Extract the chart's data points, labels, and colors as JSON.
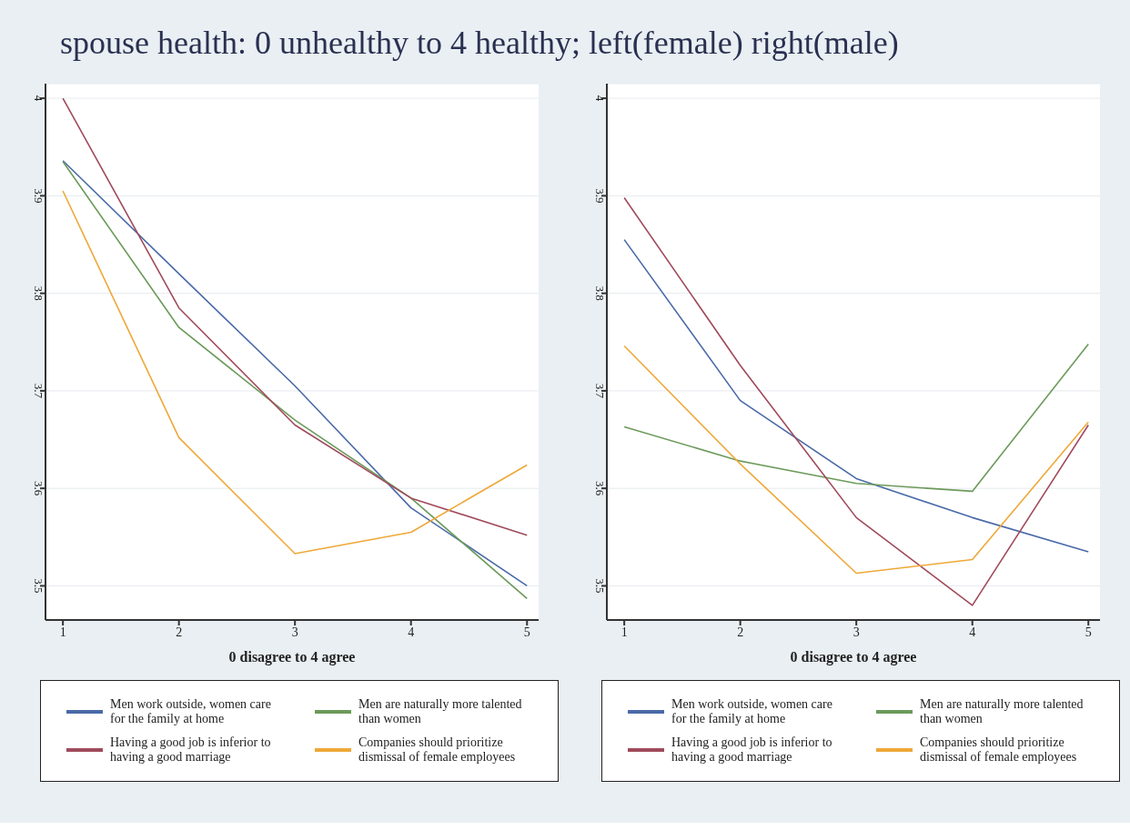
{
  "chart_data": [
    {
      "type": "line",
      "title": "spouse health: 0 unhealthy to 4 healthy; left(female) right(male)",
      "xlabel": "0 disagree to 4 agree",
      "x": [
        1,
        2,
        3,
        4,
        5
      ],
      "xlim": [
        0.85,
        5.1
      ],
      "xticks": [
        1,
        2,
        3,
        4,
        5
      ],
      "ylim": [
        3.465,
        4.015
      ],
      "yticks": [
        3.5,
        3.6,
        3.7,
        3.8,
        3.9,
        4
      ],
      "grid": "y",
      "legend": "bottom",
      "marker": "none",
      "line_style": "solid",
      "series": [
        {
          "name": "Men work outside, women care for the family at home",
          "color": "#4a6aa8",
          "values": [
            3.936,
            3.82,
            3.705,
            3.58,
            3.5
          ]
        },
        {
          "name": "Men are naturally more talented than women",
          "color": "#6c9a5a",
          "values": [
            3.935,
            3.765,
            3.67,
            3.59,
            3.487
          ]
        },
        {
          "name": "Having a good job is inferior to having a good marriage",
          "color": "#a04a5c",
          "values": [
            4.0,
            3.785,
            3.665,
            3.59,
            3.552
          ]
        },
        {
          "name": "Companies should prioritize dismissal of female employees",
          "color": "#eea838",
          "values": [
            3.905,
            3.652,
            3.533,
            3.555,
            3.624
          ]
        }
      ]
    },
    {
      "type": "line",
      "xlabel": "0 disagree to 4 agree",
      "x": [
        1,
        2,
        3,
        4,
        5
      ],
      "xlim": [
        0.85,
        5.1
      ],
      "xticks": [
        1,
        2,
        3,
        4,
        5
      ],
      "ylim": [
        3.465,
        4.015
      ],
      "yticks": [
        3.5,
        3.6,
        3.7,
        3.8,
        3.9,
        4
      ],
      "grid": "y",
      "legend": "bottom",
      "marker": "none",
      "line_style": "solid",
      "series": [
        {
          "name": "Men work outside, women care for the family at home",
          "color": "#4a6aa8",
          "values": [
            3.855,
            3.69,
            3.61,
            3.57,
            3.535
          ]
        },
        {
          "name": "Men are naturally more talented than women",
          "color": "#6c9a5a",
          "values": [
            3.663,
            3.628,
            3.605,
            3.597,
            3.748
          ]
        },
        {
          "name": "Having a good job is inferior to having a good marriage",
          "color": "#a04a5c",
          "values": [
            3.898,
            3.726,
            3.57,
            3.48,
            3.665
          ]
        },
        {
          "name": "Companies should prioritize dismissal of female employees",
          "color": "#eea838",
          "values": [
            3.746,
            3.625,
            3.513,
            3.527,
            3.668
          ]
        }
      ]
    }
  ]
}
